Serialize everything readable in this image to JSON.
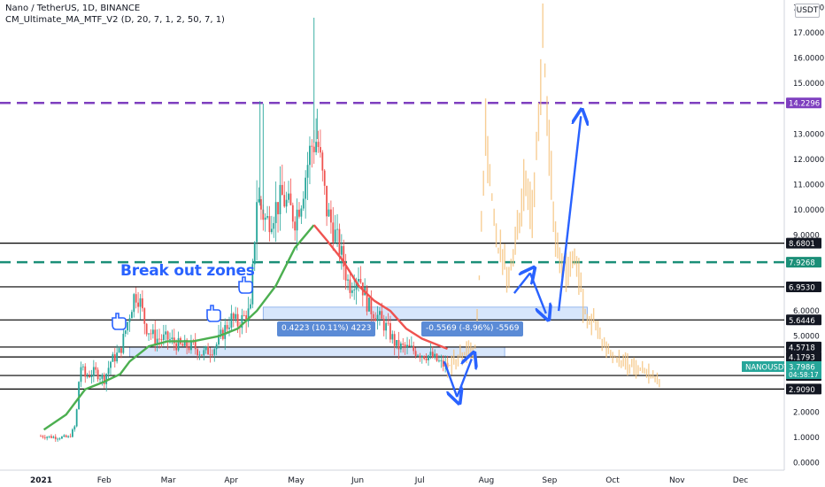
{
  "header": {
    "title": "Nano / TetherUS, 1D, BINANCE",
    "indicator": "CM_Ultimate_MA_MTF_V2 (D, 20, 7, 1, 2, 50, 7, 1)",
    "currency": "USDT"
  },
  "annotations": {
    "breakout_text": "Break out zones",
    "measure_up": "0.4223 (10.11%) 4223",
    "measure_down": "-0.5569 (-8.96%) -5569"
  },
  "colors": {
    "candles_up": "#26a69a",
    "candles_down": "#ef5350",
    "ma_up": "#4caf50",
    "ma_down": "#ef5350",
    "projection": "#f5c27a",
    "hlines": "#000000",
    "dashed_purple": "#7e3fbf",
    "dashed_teal": "#1b8f78",
    "arrows": "#2962ff",
    "zone_fill": "#c9defa"
  },
  "chart_data": {
    "type": "candlestick",
    "title": "Nano / TetherUS, 1D, BINANCE",
    "ylim": [
      -0.3,
      18.3
    ],
    "y_ticks": [
      0,
      1,
      2,
      3,
      4,
      5,
      6,
      7,
      8,
      9,
      10,
      11,
      12,
      13,
      14,
      15,
      16,
      17,
      18
    ],
    "y_tick_labels": [
      "0.0000",
      "1.0000",
      "2.0000",
      "3.0000",
      "4.0000",
      "5.0000",
      "6.0000",
      "7.0000",
      "8.0000",
      "9.0000",
      "10.0000",
      "11.0000",
      "12.0000",
      "13.0000",
      "14.0000",
      "15.0000",
      "16.0000",
      "17.0000",
      "18.0000"
    ],
    "x_axis_labels": [
      "2021",
      "Feb",
      "Mar",
      "Apr",
      "May",
      "Jun",
      "Jul",
      "Aug",
      "Sep",
      "Oct",
      "Nov",
      "Dec"
    ],
    "x_axis_months": [
      0,
      1,
      2,
      3,
      4,
      5,
      6,
      7,
      8,
      9,
      10,
      11
    ],
    "horizontal_levels": [
      {
        "value": 8.6801,
        "label": "8.6801",
        "style": "solid"
      },
      {
        "value": 6.953,
        "label": "6.9530",
        "style": "solid"
      },
      {
        "value": 5.6446,
        "label": "5.6446",
        "style": "solid"
      },
      {
        "value": 4.5718,
        "label": "4.5718",
        "style": "solid"
      },
      {
        "value": 4.1793,
        "label": "4.1793",
        "style": "solid"
      },
      {
        "value": 3.4466,
        "label": "3.4466",
        "style": "solid"
      },
      {
        "value": 2.909,
        "label": "2.9090",
        "style": "solid"
      },
      {
        "value": 14.2296,
        "label": "14.2296",
        "style": "dashed-purple"
      },
      {
        "value": 7.9268,
        "label": "7.9268",
        "style": "dashed-teal"
      }
    ],
    "current_price": {
      "label": "NANOUSDT",
      "value": "3.7986",
      "countdown": "04:58:17"
    },
    "zones": [
      {
        "from_month": 3.5,
        "to_month": 8.6,
        "low": 5.6446,
        "high": 6.15
      },
      {
        "from_month": 1.4,
        "to_month": 7.3,
        "low": 4.1793,
        "high": 4.5718
      }
    ],
    "price_path": [
      [
        0.0,
        1.05
      ],
      [
        0.25,
        1.0
      ],
      [
        0.45,
        1.0
      ],
      [
        0.55,
        1.5
      ],
      [
        0.62,
        3.9
      ],
      [
        0.7,
        3.4
      ],
      [
        0.85,
        3.6
      ],
      [
        1.0,
        3.3
      ],
      [
        1.1,
        4.0
      ],
      [
        1.25,
        4.4
      ],
      [
        1.35,
        5.4
      ],
      [
        1.48,
        6.7
      ],
      [
        1.55,
        6.5
      ],
      [
        1.65,
        5.4
      ],
      [
        1.8,
        4.9
      ],
      [
        2.0,
        4.9
      ],
      [
        2.2,
        4.6
      ],
      [
        2.4,
        4.6
      ],
      [
        2.55,
        4.3
      ],
      [
        2.75,
        4.6
      ],
      [
        2.9,
        5.3
      ],
      [
        3.0,
        5.7
      ],
      [
        3.1,
        5.5
      ],
      [
        3.3,
        6.0
      ],
      [
        3.4,
        10.5
      ],
      [
        3.55,
        9.5
      ],
      [
        3.8,
        10.5
      ],
      [
        4.0,
        9.7
      ],
      [
        4.1,
        10.5
      ],
      [
        4.25,
        12.5
      ],
      [
        4.35,
        12.8
      ],
      [
        4.5,
        10.0
      ],
      [
        4.7,
        8.5
      ],
      [
        4.85,
        7.0
      ],
      [
        5.0,
        7.5
      ],
      [
        5.15,
        6.2
      ],
      [
        5.3,
        5.8
      ],
      [
        5.45,
        5.3
      ],
      [
        5.6,
        4.6
      ],
      [
        5.8,
        4.5
      ],
      [
        6.0,
        4.3
      ],
      [
        6.15,
        4.2
      ],
      [
        6.3,
        3.9
      ],
      [
        6.4,
        3.8
      ]
    ],
    "projection_path": [
      [
        6.4,
        3.8
      ],
      [
        6.6,
        4.2
      ],
      [
        6.85,
        4.6
      ],
      [
        7.0,
        13.0
      ],
      [
        7.1,
        10.5
      ],
      [
        7.2,
        8.5
      ],
      [
        7.35,
        7.5
      ],
      [
        7.5,
        9.0
      ],
      [
        7.6,
        11.0
      ],
      [
        7.75,
        9.5
      ],
      [
        7.9,
        17.0
      ],
      [
        8.0,
        12.5
      ],
      [
        8.1,
        9.0
      ],
      [
        8.25,
        7.5
      ],
      [
        8.4,
        8.3
      ],
      [
        8.55,
        6.0
      ],
      [
        8.7,
        5.6
      ],
      [
        8.9,
        4.5
      ],
      [
        9.1,
        4.0
      ],
      [
        9.3,
        3.8
      ],
      [
        9.6,
        3.5
      ],
      [
        9.75,
        3.2
      ]
    ],
    "moving_average": [
      [
        0.05,
        1.3
      ],
      [
        0.4,
        1.9
      ],
      [
        0.7,
        2.9
      ],
      [
        1.0,
        3.2
      ],
      [
        1.25,
        3.5
      ],
      [
        1.4,
        4.0
      ],
      [
        1.7,
        4.6
      ],
      [
        2.0,
        4.8
      ],
      [
        2.4,
        4.8
      ],
      [
        2.8,
        5.0
      ],
      [
        3.1,
        5.3
      ],
      [
        3.4,
        6.0
      ],
      [
        3.7,
        7.0
      ],
      [
        4.0,
        8.5
      ],
      [
        4.3,
        9.4
      ],
      [
        4.5,
        8.8
      ],
      [
        4.75,
        8.0
      ],
      [
        5.0,
        7.0
      ],
      [
        5.25,
        6.4
      ],
      [
        5.5,
        6.0
      ],
      [
        5.75,
        5.3
      ],
      [
        6.0,
        4.9
      ],
      [
        6.2,
        4.7
      ],
      [
        6.4,
        4.5
      ]
    ],
    "arrows": [
      [
        6.35,
        4.0,
        6.55,
        2.6
      ],
      [
        6.55,
        2.6,
        6.78,
        4.1
      ],
      [
        7.45,
        6.7,
        7.7,
        7.5
      ],
      [
        7.7,
        7.5,
        7.95,
        5.9
      ],
      [
        8.15,
        6.0,
        8.5,
        13.7
      ]
    ]
  }
}
